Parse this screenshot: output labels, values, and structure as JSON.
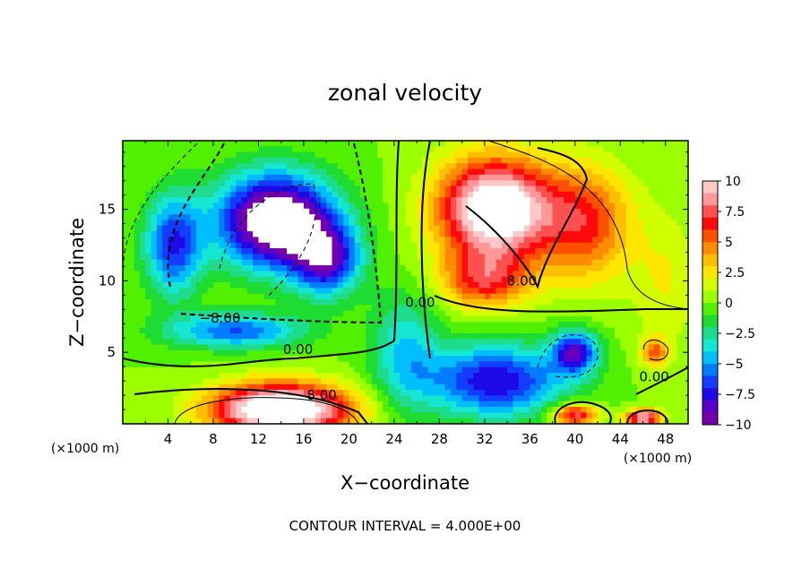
{
  "chart_data": {
    "type": "heatmap",
    "title": "zonal velocity",
    "xlabel": "X−coordinate",
    "ylabel": "Z−coordinate",
    "x_unit": "(×1000 m)",
    "y_unit": "(×1000 m)",
    "xlim": [
      0,
      50
    ],
    "ylim": [
      0,
      19.8
    ],
    "x_ticks": [
      "4",
      "8",
      "12",
      "16",
      "20",
      "24",
      "28",
      "32",
      "36",
      "40",
      "44",
      "48"
    ],
    "y_ticks": [
      "5",
      "10",
      "15"
    ],
    "colorbar": {
      "range": [
        -10,
        10
      ],
      "tick_labels": [
        "10",
        "7.5",
        "5",
        "2.5",
        "0",
        "−2.5",
        "−5",
        "−7.5",
        "−10"
      ],
      "colors": [
        "#ffc8c8",
        "#ff9999",
        "#ff5050",
        "#ff0a0a",
        "#ff5000",
        "#ff8c00",
        "#ffbe00",
        "#ffe600",
        "#d2ff00",
        "#9bff00",
        "#50f000",
        "#1edc32",
        "#1edc8c",
        "#14e6d2",
        "#00beff",
        "#007dff",
        "#143cff",
        "#1e0ae6",
        "#5a00c8",
        "#7800aa"
      ]
    },
    "contour_interval_text": "CONTOUR INTERVAL =  4.000E+00",
    "contour_labels": [
      {
        "text": "−8.00",
        "x": 8.6,
        "y": 7.4
      },
      {
        "text": "0.00",
        "x": 15.5,
        "y": 5.2
      },
      {
        "text": "8.00",
        "x": 17.6,
        "y": 2.0
      },
      {
        "text": "0.00",
        "x": 26.3,
        "y": 8.5
      },
      {
        "text": "8.00",
        "x": 35.3,
        "y": 10.0
      },
      {
        "text": "0.00",
        "x": 47.0,
        "y": 3.3
      }
    ],
    "features": [
      {
        "type": "center",
        "x": 13.5,
        "y": 14.2,
        "value": -13,
        "sx": 5.0,
        "sy": 3.2
      },
      {
        "type": "center",
        "x": 18.0,
        "y": 11.5,
        "value": -8,
        "sx": 3.0,
        "sy": 2.5
      },
      {
        "type": "center",
        "x": 4.5,
        "y": 12.5,
        "value": -7,
        "sx": 2.5,
        "sy": 3.5
      },
      {
        "type": "center",
        "x": 33.0,
        "y": 15.0,
        "value": 13,
        "sx": 5.0,
        "sy": 3.5
      },
      {
        "type": "center",
        "x": 41.0,
        "y": 14.0,
        "value": 6,
        "sx": 4.0,
        "sy": 4.0
      },
      {
        "type": "center",
        "x": 32.0,
        "y": 10.0,
        "value": 6,
        "sx": 4.0,
        "sy": 2.0
      },
      {
        "type": "center",
        "x": 14.0,
        "y": 1.0,
        "value": 14,
        "sx": 6.0,
        "sy": 1.8
      },
      {
        "type": "center",
        "x": 33.0,
        "y": 3.0,
        "value": -8,
        "sx": 6.0,
        "sy": 2.5
      },
      {
        "type": "center",
        "x": 40.0,
        "y": 5.0,
        "value": -8,
        "sx": 2.0,
        "sy": 1.5
      },
      {
        "type": "center",
        "x": 40.0,
        "y": 0.6,
        "value": 8,
        "sx": 2.0,
        "sy": 0.8
      },
      {
        "type": "center",
        "x": 46.0,
        "y": 0.4,
        "value": 10,
        "sx": 1.5,
        "sy": 0.6
      },
      {
        "type": "center",
        "x": 47.0,
        "y": 5.0,
        "value": 5,
        "sx": 1.2,
        "sy": 1.0
      },
      {
        "type": "center",
        "x": 25.0,
        "y": 5.0,
        "value": -4,
        "sx": 3.0,
        "sy": 4.0
      },
      {
        "type": "center",
        "x": 10.0,
        "y": 6.5,
        "value": -6,
        "sx": 6.0,
        "sy": 1.2
      },
      {
        "type": "center",
        "x": 48.0,
        "y": 10.0,
        "value": 2,
        "sx": 3.0,
        "sy": 5.0
      }
    ]
  }
}
